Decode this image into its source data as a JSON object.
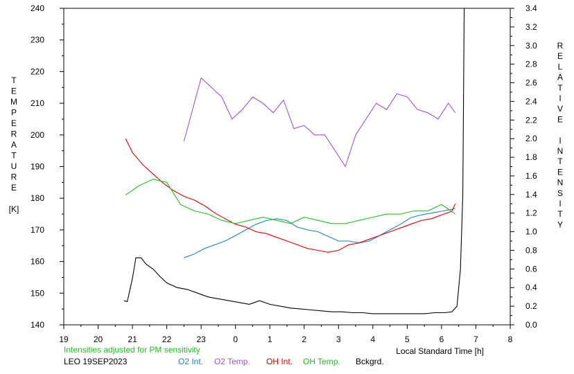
{
  "chart_data": {
    "type": "line",
    "xlabel": "Local Standard Time [h]",
    "ylabel_left": [
      "T",
      "E",
      "M",
      "P",
      "E",
      "R",
      "A",
      "T",
      "U",
      "R",
      "E",
      "",
      "[K]"
    ],
    "ylabel_right": [
      "R",
      "E",
      "L",
      "A",
      "T",
      "I",
      "V",
      "E",
      "",
      "I",
      "N",
      "T",
      "E",
      "N",
      "S",
      "I",
      "T",
      "Y"
    ],
    "x_ticks": [
      "19",
      "20",
      "21",
      "22",
      "23",
      "0",
      "1",
      "2",
      "3",
      "4",
      "5",
      "6",
      "7",
      "8"
    ],
    "x_range": [
      19,
      32
    ],
    "y_left_ticks": [
      140,
      150,
      160,
      170,
      180,
      190,
      200,
      210,
      220,
      230,
      240
    ],
    "y_left_range": [
      140,
      240
    ],
    "y_right_ticks": [
      "0.0",
      "0.2",
      "0.4",
      "0.6",
      "0.8",
      "1.0",
      "1.2",
      "1.4",
      "1.6",
      "1.8",
      "2.0",
      "2.2",
      "2.4",
      "2.6",
      "2.8",
      "3.0",
      "3.2",
      "3.4"
    ],
    "y_right_range": [
      0.0,
      3.4
    ],
    "footer": {
      "note": "Intensities adjusted for PM sensitivity",
      "station": "LEO 19SEP2023",
      "legend": [
        {
          "label": "O2 Int.",
          "color": "#1e7fd0"
        },
        {
          "label": "O2 Temp.",
          "color": "#a050e0"
        },
        {
          "label": "OH Int.",
          "color": "#e00000"
        },
        {
          "label": "OH Temp.",
          "color": "#20c020"
        },
        {
          "label": "Bckgrd.",
          "color": "#000000"
        }
      ]
    },
    "series": [
      {
        "name": "O2 Temp.",
        "axis": "left",
        "color": "#a050e0",
        "x": [
          22.5,
          23.0,
          23.3,
          23.6,
          23.9,
          24.2,
          24.5,
          24.8,
          25.1,
          25.4,
          25.7,
          26.0,
          26.3,
          26.6,
          26.9,
          27.2,
          27.5,
          27.8,
          28.1,
          28.4,
          28.7,
          29.0,
          29.3,
          29.6,
          29.9,
          30.2,
          30.4
        ],
        "y": [
          198,
          218,
          215,
          212,
          205,
          208,
          212,
          210,
          207,
          211,
          202,
          203,
          200,
          200,
          195,
          190,
          200,
          205,
          210,
          208,
          213,
          212,
          208,
          207,
          205,
          210,
          207
        ]
      },
      {
        "name": "O2 Int.",
        "axis": "right",
        "color": "#1e7fd0",
        "x": [
          22.5,
          22.8,
          23.1,
          23.4,
          23.7,
          24.0,
          24.3,
          24.6,
          24.9,
          25.2,
          25.5,
          25.8,
          26.1,
          26.4,
          26.7,
          27.0,
          27.3,
          27.6,
          27.9,
          28.2,
          28.5,
          28.8,
          29.1,
          29.4,
          29.7,
          30.0,
          30.3,
          30.4
        ],
        "y": [
          0.72,
          0.76,
          0.82,
          0.86,
          0.9,
          0.96,
          1.02,
          1.08,
          1.12,
          1.14,
          1.12,
          1.05,
          1.02,
          1.0,
          0.95,
          0.9,
          0.9,
          0.88,
          0.9,
          0.96,
          1.02,
          1.08,
          1.15,
          1.18,
          1.2,
          1.22,
          1.24,
          1.25
        ]
      },
      {
        "name": "OH Int.",
        "axis": "right",
        "color": "#e00000",
        "x": [
          20.8,
          21.0,
          21.3,
          21.6,
          21.9,
          22.2,
          22.5,
          22.8,
          23.1,
          23.4,
          23.7,
          24.0,
          24.3,
          24.6,
          24.9,
          25.2,
          25.5,
          25.8,
          26.1,
          26.4,
          26.7,
          27.0,
          27.3,
          27.6,
          27.9,
          28.2,
          28.5,
          28.8,
          29.1,
          29.4,
          29.7,
          30.0,
          30.3,
          30.4
        ],
        "y": [
          2.0,
          1.85,
          1.72,
          1.62,
          1.52,
          1.44,
          1.38,
          1.34,
          1.28,
          1.2,
          1.14,
          1.08,
          1.05,
          1.0,
          0.98,
          0.94,
          0.9,
          0.86,
          0.82,
          0.8,
          0.78,
          0.8,
          0.86,
          0.88,
          0.92,
          0.96,
          1.0,
          1.04,
          1.08,
          1.12,
          1.14,
          1.18,
          1.22,
          1.3
        ]
      },
      {
        "name": "OH Temp.",
        "axis": "left",
        "color": "#20c020",
        "x": [
          20.8,
          21.2,
          21.6,
          22.0,
          22.4,
          22.8,
          23.2,
          23.6,
          24.0,
          24.4,
          24.8,
          25.2,
          25.6,
          26.0,
          26.4,
          26.8,
          27.2,
          27.6,
          28.0,
          28.4,
          28.8,
          29.2,
          29.6,
          30.0,
          30.4
        ],
        "y": [
          181,
          184,
          186,
          185,
          178,
          176,
          175,
          173,
          172,
          173,
          174,
          173,
          172,
          174,
          173,
          172,
          172,
          173,
          174,
          175,
          175,
          176,
          176,
          178,
          175
        ]
      },
      {
        "name": "Bckgrd.",
        "axis": "right",
        "color": "#000000",
        "x": [
          20.75,
          20.85,
          21.0,
          21.1,
          21.25,
          21.4,
          21.6,
          21.8,
          22.0,
          22.3,
          22.6,
          22.9,
          23.2,
          23.5,
          23.8,
          24.1,
          24.4,
          24.7,
          25.0,
          25.3,
          25.6,
          25.9,
          26.2,
          26.5,
          26.8,
          27.1,
          27.4,
          27.7,
          28.0,
          28.3,
          28.6,
          28.9,
          29.2,
          29.5,
          29.8,
          30.1,
          30.3,
          30.45,
          30.55,
          30.62,
          30.66
        ],
        "y": [
          0.26,
          0.25,
          0.5,
          0.72,
          0.72,
          0.65,
          0.6,
          0.52,
          0.45,
          0.4,
          0.38,
          0.34,
          0.3,
          0.28,
          0.26,
          0.24,
          0.22,
          0.26,
          0.22,
          0.2,
          0.18,
          0.17,
          0.16,
          0.15,
          0.14,
          0.14,
          0.13,
          0.13,
          0.12,
          0.12,
          0.12,
          0.12,
          0.12,
          0.12,
          0.13,
          0.13,
          0.14,
          0.2,
          0.6,
          1.4,
          3.4
        ]
      }
    ]
  }
}
